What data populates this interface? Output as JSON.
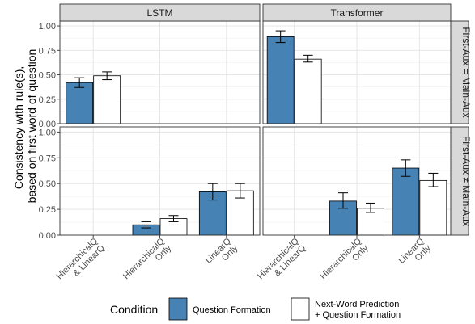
{
  "chart_data": {
    "type": "bar",
    "ylabel_lines": [
      "Consistency with rule(s),",
      "based on first word of question"
    ],
    "xlabel": "",
    "ylim": [
      0,
      1.05
    ],
    "yticks": [
      "0.00",
      "0.25",
      "0.50",
      "0.75",
      "1.00"
    ],
    "ytick_values": [
      0,
      0.25,
      0.5,
      0.75,
      1.0
    ],
    "grid": true,
    "columns": [
      "LSTM",
      "Transformer"
    ],
    "rows": [
      "First-Aux = Main-Aux",
      "First-Aux ≠ Main-Aux"
    ],
    "categories": [
      {
        "key": "hl",
        "lines": [
          "HierarchicalQ",
          "& LinearQ"
        ]
      },
      {
        "key": "h",
        "lines": [
          "HierarchicalQ",
          "Only"
        ]
      },
      {
        "key": "l",
        "lines": [
          "LinearQ",
          "Only"
        ]
      }
    ],
    "legend": {
      "title": "Condition",
      "placement": "bottom",
      "items": [
        {
          "label_lines": [
            "Question Formation"
          ],
          "color": "#4682b4"
        },
        {
          "label_lines": [
            "Next-Word Prediction",
            "+ Question Formation"
          ],
          "color": "#ffffff"
        }
      ]
    },
    "panels": [
      {
        "column": "LSTM",
        "row": "First-Aux = Main-Aux",
        "bars": [
          {
            "category": "hl",
            "series": 0,
            "value": 0.42,
            "lo": 0.37,
            "hi": 0.47
          },
          {
            "category": "hl",
            "series": 1,
            "value": 0.49,
            "lo": 0.45,
            "hi": 0.53
          }
        ]
      },
      {
        "column": "Transformer",
        "row": "First-Aux = Main-Aux",
        "bars": [
          {
            "category": "hl",
            "series": 0,
            "value": 0.89,
            "lo": 0.83,
            "hi": 0.95
          },
          {
            "category": "hl",
            "series": 1,
            "value": 0.66,
            "lo": 0.63,
            "hi": 0.7
          }
        ]
      },
      {
        "column": "LSTM",
        "row": "First-Aux ≠ Main-Aux",
        "bars": [
          {
            "category": "h",
            "series": 0,
            "value": 0.1,
            "lo": 0.07,
            "hi": 0.13
          },
          {
            "category": "h",
            "series": 1,
            "value": 0.16,
            "lo": 0.13,
            "hi": 0.19
          },
          {
            "category": "l",
            "series": 0,
            "value": 0.42,
            "lo": 0.34,
            "hi": 0.5
          },
          {
            "category": "l",
            "series": 1,
            "value": 0.43,
            "lo": 0.36,
            "hi": 0.5
          }
        ]
      },
      {
        "column": "Transformer",
        "row": "First-Aux ≠ Main-Aux",
        "bars": [
          {
            "category": "h",
            "series": 0,
            "value": 0.33,
            "lo": 0.26,
            "hi": 0.41
          },
          {
            "category": "h",
            "series": 1,
            "value": 0.26,
            "lo": 0.22,
            "hi": 0.31
          },
          {
            "category": "l",
            "series": 0,
            "value": 0.65,
            "lo": 0.57,
            "hi": 0.73
          },
          {
            "category": "l",
            "series": 1,
            "value": 0.53,
            "lo": 0.47,
            "hi": 0.6
          }
        ]
      }
    ]
  }
}
